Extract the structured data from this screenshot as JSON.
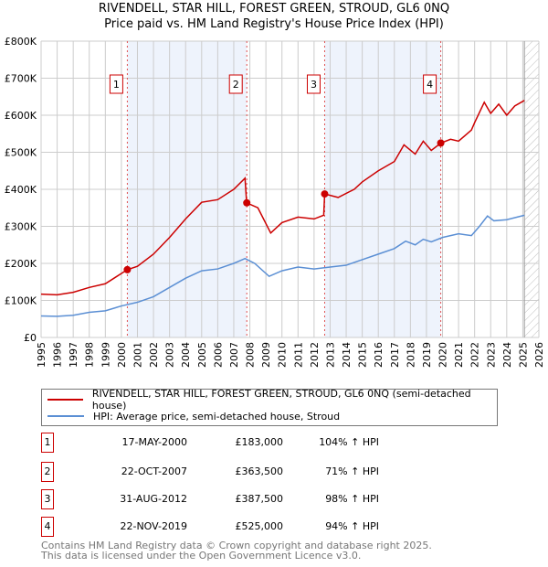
{
  "title_line1": "RIVENDELL, STAR HILL, FOREST GREEN, STROUD, GL6 0NQ",
  "title_line2": "Price paid vs. HM Land Registry's House Price Index (HPI)",
  "chart_data": {
    "type": "line",
    "xlim": [
      1995,
      2026
    ],
    "ylim": [
      0,
      800000
    ],
    "x_ticks": [
      "1995",
      "1996",
      "1997",
      "1998",
      "1999",
      "2000",
      "2001",
      "2002",
      "2003",
      "2004",
      "2005",
      "2006",
      "2007",
      "2008",
      "2009",
      "2010",
      "2011",
      "2012",
      "2013",
      "2014",
      "2015",
      "2016",
      "2017",
      "2018",
      "2019",
      "2020",
      "2021",
      "2022",
      "2023",
      "2024",
      "2025",
      "2026"
    ],
    "y_ticks": [
      {
        "v": 0,
        "label": "£0"
      },
      {
        "v": 100000,
        "label": "£100K"
      },
      {
        "v": 200000,
        "label": "£200K"
      },
      {
        "v": 300000,
        "label": "£300K"
      },
      {
        "v": 400000,
        "label": "£400K"
      },
      {
        "v": 500000,
        "label": "£500K"
      },
      {
        "v": 600000,
        "label": "£600K"
      },
      {
        "v": 700000,
        "label": "£700K"
      },
      {
        "v": 800000,
        "label": "£800K"
      }
    ],
    "grid": true,
    "series": [
      {
        "name": "RIVENDELL, STAR HILL, FOREST GREEN, STROUD, GL6 0NQ (semi-detached house)",
        "color": "#cc0000",
        "x": [
          1995,
          1996,
          1997,
          1998,
          1999,
          2000.37,
          2001,
          2002,
          2003,
          2004,
          2005,
          2006,
          2007,
          2007.7,
          2007.8,
          2008.5,
          2009.3,
          2010,
          2011,
          2012,
          2012.6,
          2012.66,
          2013.5,
          2014.5,
          2015,
          2016,
          2017,
          2017.6,
          2018.3,
          2018.8,
          2019.3,
          2019.9,
          2020.5,
          2021,
          2021.8,
          2022,
          2022.6,
          2023,
          2023.5,
          2024,
          2024.5,
          2025.1
        ],
        "y": [
          117000,
          115000,
          122000,
          135000,
          145000,
          183000,
          192000,
          225000,
          270000,
          320000,
          365000,
          372000,
          400000,
          430000,
          363500,
          350000,
          282000,
          310000,
          325000,
          320000,
          330000,
          387500,
          378000,
          400000,
          420000,
          450000,
          475000,
          520000,
          495000,
          530000,
          505000,
          525000,
          535000,
          530000,
          560000,
          580000,
          635000,
          605000,
          630000,
          600000,
          625000,
          640000
        ]
      },
      {
        "name": "HPI: Average price, semi-detached house, Stroud",
        "color": "#5b8fd4",
        "x": [
          1995,
          1996,
          1997,
          1998,
          1999,
          2000,
          2001,
          2002,
          2003,
          2004,
          2005,
          2006,
          2007,
          2007.7,
          2008.3,
          2009.2,
          2010,
          2011,
          2012,
          2013,
          2014,
          2015,
          2016,
          2017,
          2017.7,
          2018.3,
          2018.8,
          2019.3,
          2020,
          2021,
          2021.8,
          2022.3,
          2022.8,
          2023.2,
          2024,
          2025.1
        ],
        "y": [
          58000,
          57000,
          60000,
          68000,
          72000,
          85000,
          95000,
          110000,
          135000,
          160000,
          180000,
          185000,
          200000,
          213000,
          200000,
          165000,
          180000,
          190000,
          185000,
          190000,
          195000,
          210000,
          225000,
          240000,
          260000,
          250000,
          265000,
          258000,
          270000,
          280000,
          275000,
          300000,
          328000,
          315000,
          318000,
          330000
        ]
      }
    ],
    "sales": [
      {
        "n": "1",
        "x": 2000.37,
        "date": "17-MAY-2000",
        "price": "£183,000",
        "price_v": 183000,
        "hpi": "104% ↑ HPI"
      },
      {
        "n": "2",
        "x": 2007.81,
        "date": "22-OCT-2007",
        "price": "£363,500",
        "price_v": 363500,
        "hpi": "71% ↑ HPI"
      },
      {
        "n": "3",
        "x": 2012.66,
        "date": "31-AUG-2012",
        "price": "£387,500",
        "price_v": 387500,
        "hpi": "98% ↑ HPI"
      },
      {
        "n": "4",
        "x": 2019.89,
        "date": "22-NOV-2019",
        "price": "£525,000",
        "price_v": 525000,
        "hpi": "94% ↑ HPI"
      }
    ],
    "shaded": [
      [
        2000.37,
        2007.81
      ],
      [
        2012.66,
        2019.89
      ]
    ],
    "hatched_from": 2025.1,
    "legend_position": "below"
  },
  "legend": {
    "red": "RIVENDELL, STAR HILL, FOREST GREEN, STROUD, GL6 0NQ (semi-detached house)",
    "blue": "HPI: Average price, semi-detached house, Stroud"
  },
  "footer": {
    "line1": "Contains HM Land Registry data © Crown copyright and database right 2025.",
    "line2": "This data is licensed under the Open Government Licence v3.0."
  }
}
